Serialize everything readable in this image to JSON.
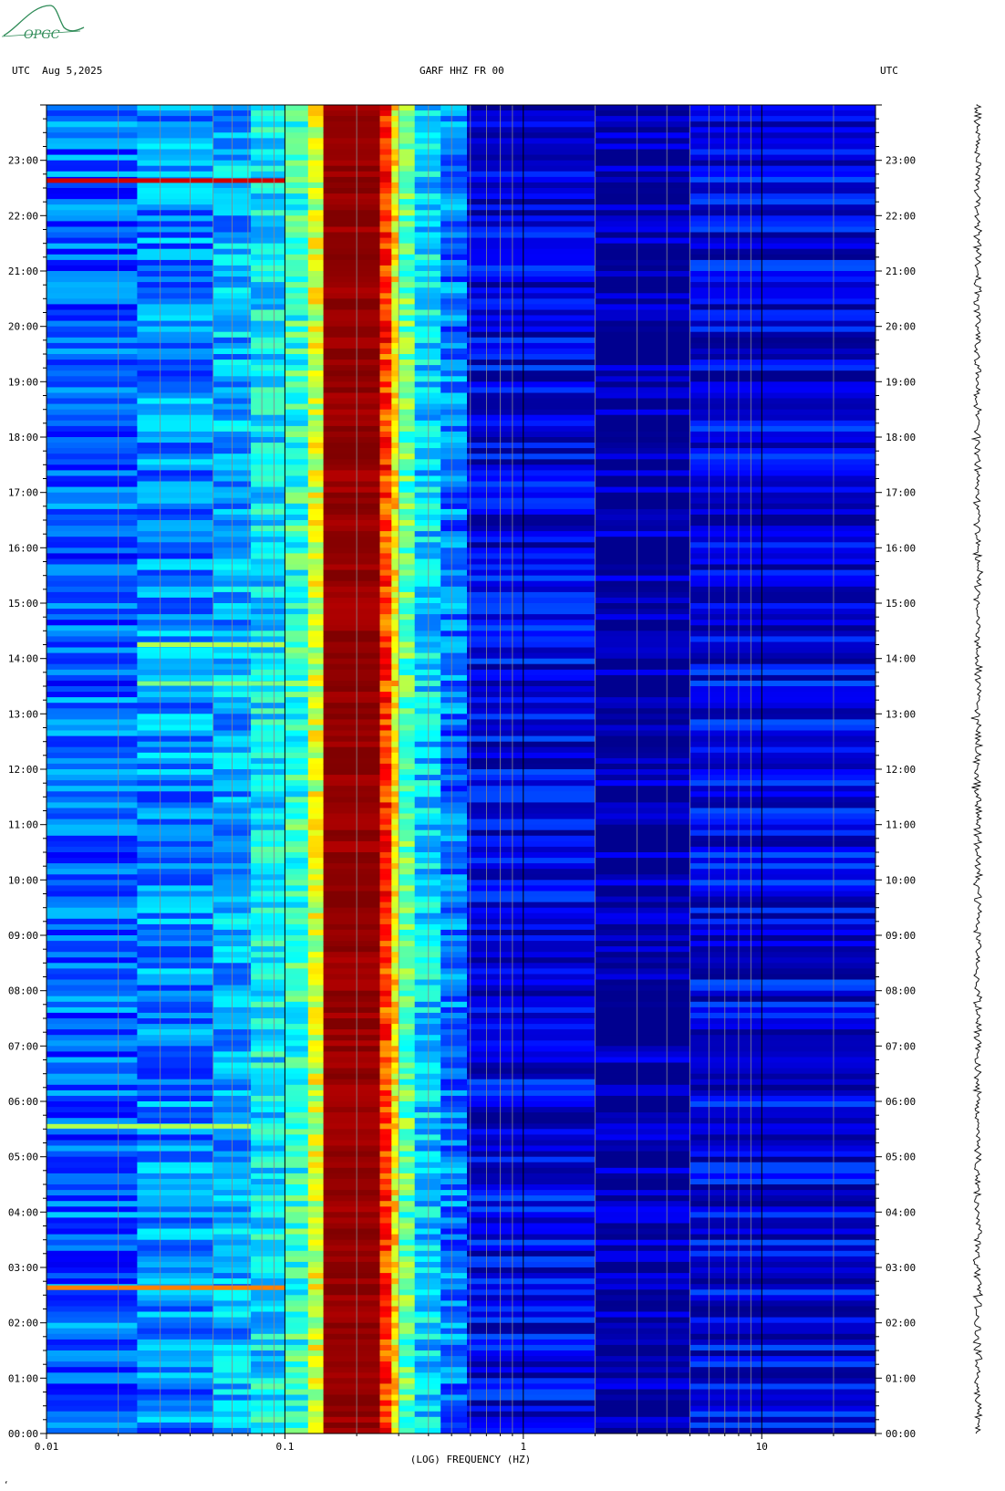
{
  "header": {
    "left_label": "UTC  Aug 5,2025",
    "center_label": "GARF HHZ FR 00",
    "right_label": "UTC"
  },
  "logo": {
    "text": "OPGC",
    "color": "#2e8b57"
  },
  "footer_mark": "‘",
  "chart_data": {
    "type": "heatmap",
    "title": "GARF HHZ FR 00",
    "xlabel": "(LOG) FREQUENCY (HZ)",
    "ylabel": "UTC",
    "x_scale": "log",
    "xlim": [
      0.01,
      30
    ],
    "x_ticks": [
      {
        "value": 0.01,
        "label": "0.01"
      },
      {
        "value": 0.1,
        "label": "0.1"
      },
      {
        "value": 1,
        "label": "1"
      },
      {
        "value": 10,
        "label": "10"
      }
    ],
    "ylim": [
      "00:00",
      "24:00"
    ],
    "y_ticks": [
      "00:00",
      "01:00",
      "02:00",
      "03:00",
      "04:00",
      "05:00",
      "06:00",
      "07:00",
      "08:00",
      "09:00",
      "10:00",
      "11:00",
      "12:00",
      "13:00",
      "14:00",
      "15:00",
      "16:00",
      "17:00",
      "18:00",
      "19:00",
      "20:00",
      "21:00",
      "22:00",
      "23:00"
    ],
    "colormap": [
      "#00008f",
      "#0000ff",
      "#0080ff",
      "#00ffff",
      "#80ff80",
      "#ffff00",
      "#ff8000",
      "#ff0000",
      "#800000"
    ],
    "frequency_bands": [
      {
        "from": 0.01,
        "to": 0.024,
        "level": 0.22
      },
      {
        "from": 0.024,
        "to": 0.05,
        "level": 0.26
      },
      {
        "from": 0.05,
        "to": 0.072,
        "level": 0.3
      },
      {
        "from": 0.072,
        "to": 0.1,
        "level": 0.36
      },
      {
        "from": 0.1,
        "to": 0.125,
        "level": 0.42
      },
      {
        "from": 0.125,
        "to": 0.145,
        "level": 0.58
      },
      {
        "from": 0.145,
        "to": 0.25,
        "level": 0.98
      },
      {
        "from": 0.25,
        "to": 0.28,
        "level": 0.82
      },
      {
        "from": 0.28,
        "to": 0.3,
        "level": 0.64
      },
      {
        "from": 0.3,
        "to": 0.35,
        "level": 0.47
      },
      {
        "from": 0.35,
        "to": 0.45,
        "level": 0.34
      },
      {
        "from": 0.45,
        "to": 0.58,
        "level": 0.24
      },
      {
        "from": 0.58,
        "to": 2,
        "level": 0.1
      },
      {
        "from": 2,
        "to": 5,
        "level": 0.02
      },
      {
        "from": 5,
        "to": 30,
        "level": 0.1
      }
    ],
    "events": [
      {
        "time": "22:38",
        "from": 0.01,
        "to": 0.1,
        "level": 0.92
      },
      {
        "time": "14:15",
        "from": 0.024,
        "to": 0.1,
        "level": 0.55
      },
      {
        "time": "13:33",
        "from": 0.024,
        "to": 0.1,
        "level": 0.5
      },
      {
        "time": "05:33",
        "from": 0.01,
        "to": 0.072,
        "level": 0.55
      },
      {
        "time": "02:38",
        "from": 0.01,
        "to": 0.1,
        "level": 0.75
      }
    ]
  }
}
